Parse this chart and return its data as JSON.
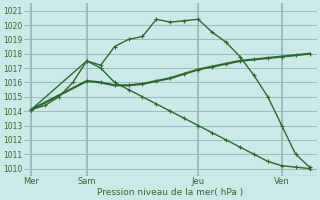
{
  "background_color": "#cce8e8",
  "grid_color": "#99bbbb",
  "line_color": "#2d6a2d",
  "ylim": [
    1009.5,
    1021.5
  ],
  "yticks": [
    1010,
    1011,
    1012,
    1013,
    1014,
    1015,
    1016,
    1017,
    1018,
    1019,
    1020,
    1021
  ],
  "xlabel": "Pression niveau de la mer( hPa )",
  "day_positions": [
    0,
    4,
    12,
    18
  ],
  "day_labels": [
    "Mer",
    "Sam",
    "Jeu",
    "Ven"
  ],
  "series1_x": [
    0,
    1,
    2,
    3,
    4,
    5,
    6,
    7,
    8,
    9,
    10,
    11,
    12,
    13,
    14,
    15,
    16,
    17,
    18,
    19,
    20
  ],
  "series1_y": [
    1014.1,
    1014.4,
    1015.0,
    1016.0,
    1017.5,
    1017.2,
    1018.5,
    1019.0,
    1019.2,
    1020.4,
    1020.2,
    1020.3,
    1020.4,
    1019.5,
    1018.8,
    1017.8,
    1016.5,
    1015.0,
    1013.0,
    1011.0,
    1010.1
  ],
  "series2_x": [
    0,
    4,
    5,
    6,
    7,
    8,
    9,
    10,
    11,
    12,
    13,
    14,
    15,
    16,
    17,
    18,
    19,
    20
  ],
  "series2_y": [
    1014.1,
    1016.1,
    1016.0,
    1015.8,
    1015.8,
    1015.9,
    1016.1,
    1016.3,
    1016.6,
    1016.9,
    1017.1,
    1017.3,
    1017.5,
    1017.6,
    1017.7,
    1017.8,
    1017.9,
    1018.0
  ],
  "series3_x": [
    0,
    4,
    5,
    6,
    7,
    8,
    9,
    10,
    11,
    12,
    13,
    14,
    15,
    16,
    17,
    18,
    19,
    20
  ],
  "series3_y": [
    1014.1,
    1017.5,
    1017.0,
    1016.0,
    1015.5,
    1015.0,
    1014.5,
    1014.0,
    1013.5,
    1013.0,
    1012.5,
    1012.0,
    1011.5,
    1011.0,
    1010.5,
    1010.2,
    1010.1,
    1010.0
  ],
  "xlim": [
    -0.5,
    20.5
  ],
  "figsize": [
    3.2,
    2.0
  ],
  "dpi": 100
}
